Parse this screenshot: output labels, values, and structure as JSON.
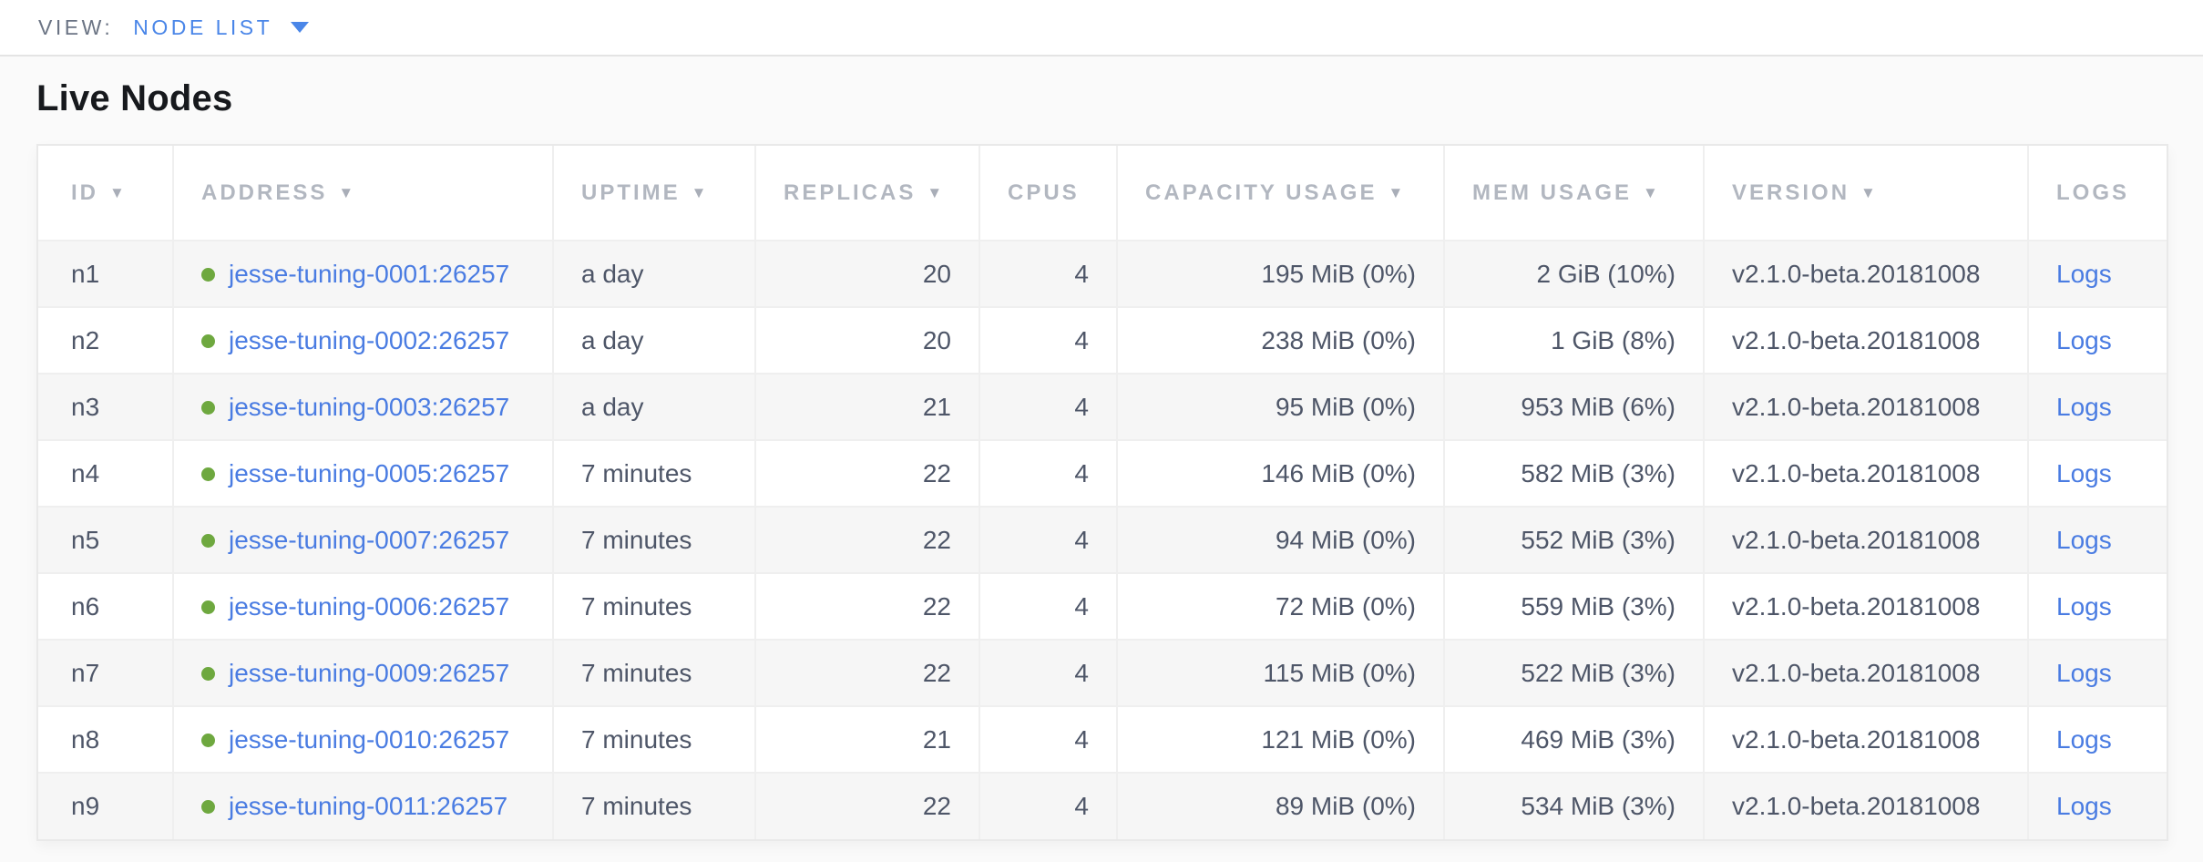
{
  "colors": {
    "accent": "#4a86e8",
    "link": "#4a7ce2",
    "node_healthy": "#6ea83f",
    "page_bg": "#fafafa"
  },
  "view_bar": {
    "label": "VIEW:",
    "selected": "NODE LIST"
  },
  "page": {
    "title": "Live Nodes"
  },
  "table": {
    "logs_label": "Logs",
    "sort_icon": "▼",
    "columns": [
      {
        "key": "id",
        "label": "ID",
        "sortable": true
      },
      {
        "key": "address",
        "label": "ADDRESS",
        "sortable": true
      },
      {
        "key": "uptime",
        "label": "UPTIME",
        "sortable": true
      },
      {
        "key": "replicas",
        "label": "REPLICAS",
        "sortable": true
      },
      {
        "key": "cpus",
        "label": "CPUS",
        "sortable": false
      },
      {
        "key": "capacity",
        "label": "CAPACITY USAGE",
        "sortable": true
      },
      {
        "key": "mem",
        "label": "MEM USAGE",
        "sortable": true
      },
      {
        "key": "version",
        "label": "VERSION",
        "sortable": true
      },
      {
        "key": "logs",
        "label": "LOGS",
        "sortable": false
      }
    ],
    "rows": [
      {
        "id": "n1",
        "status": "healthy",
        "address": "jesse-tuning-0001:26257",
        "uptime": "a day",
        "replicas": "20",
        "cpus": "4",
        "capacity": "195 MiB (0%)",
        "mem": "2 GiB (10%)",
        "version": "v2.1.0-beta.20181008"
      },
      {
        "id": "n2",
        "status": "healthy",
        "address": "jesse-tuning-0002:26257",
        "uptime": "a day",
        "replicas": "20",
        "cpus": "4",
        "capacity": "238 MiB (0%)",
        "mem": "1 GiB (8%)",
        "version": "v2.1.0-beta.20181008"
      },
      {
        "id": "n3",
        "status": "healthy",
        "address": "jesse-tuning-0003:26257",
        "uptime": "a day",
        "replicas": "21",
        "cpus": "4",
        "capacity": "95 MiB (0%)",
        "mem": "953 MiB (6%)",
        "version": "v2.1.0-beta.20181008"
      },
      {
        "id": "n4",
        "status": "healthy",
        "address": "jesse-tuning-0005:26257",
        "uptime": "7 minutes",
        "replicas": "22",
        "cpus": "4",
        "capacity": "146 MiB (0%)",
        "mem": "582 MiB (3%)",
        "version": "v2.1.0-beta.20181008"
      },
      {
        "id": "n5",
        "status": "healthy",
        "address": "jesse-tuning-0007:26257",
        "uptime": "7 minutes",
        "replicas": "22",
        "cpus": "4",
        "capacity": "94 MiB (0%)",
        "mem": "552 MiB (3%)",
        "version": "v2.1.0-beta.20181008"
      },
      {
        "id": "n6",
        "status": "healthy",
        "address": "jesse-tuning-0006:26257",
        "uptime": "7 minutes",
        "replicas": "22",
        "cpus": "4",
        "capacity": "72 MiB (0%)",
        "mem": "559 MiB (3%)",
        "version": "v2.1.0-beta.20181008"
      },
      {
        "id": "n7",
        "status": "healthy",
        "address": "jesse-tuning-0009:26257",
        "uptime": "7 minutes",
        "replicas": "22",
        "cpus": "4",
        "capacity": "115 MiB (0%)",
        "mem": "522 MiB (3%)",
        "version": "v2.1.0-beta.20181008"
      },
      {
        "id": "n8",
        "status": "healthy",
        "address": "jesse-tuning-0010:26257",
        "uptime": "7 minutes",
        "replicas": "21",
        "cpus": "4",
        "capacity": "121 MiB (0%)",
        "mem": "469 MiB (3%)",
        "version": "v2.1.0-beta.20181008"
      },
      {
        "id": "n9",
        "status": "healthy",
        "address": "jesse-tuning-0011:26257",
        "uptime": "7 minutes",
        "replicas": "22",
        "cpus": "4",
        "capacity": "89 MiB (0%)",
        "mem": "534 MiB (3%)",
        "version": "v2.1.0-beta.20181008"
      }
    ]
  }
}
